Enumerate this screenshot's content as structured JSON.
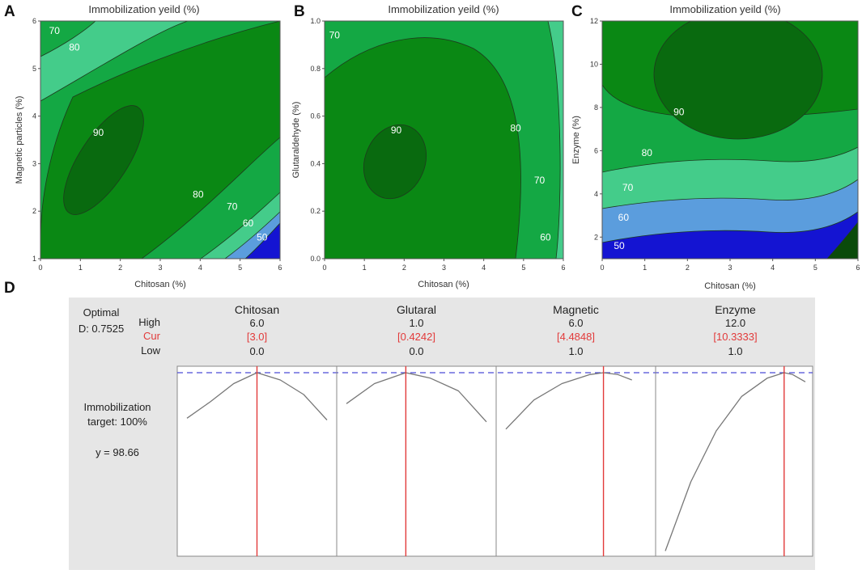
{
  "panel_letters": {
    "a": "A",
    "b": "B",
    "c": "C",
    "d": "D"
  },
  "colors": {
    "band_50": "#1414d2",
    "band_60": "#5b9ddd",
    "band_70": "#44cc8a",
    "band_80": "#14a844",
    "band_90": "#0a8814",
    "band_top": "#096a0f",
    "optimizer_bg": "#e6e6e6",
    "current_line": "#e23a3a",
    "target_line": "#4a4ad6"
  },
  "chart_data": [
    {
      "type": "contour",
      "title": "Immobilization yeild (%)",
      "xlabel": "Chitosan (%)",
      "ylabel": "Magnetic particles (%)",
      "xlim": [
        0,
        6
      ],
      "ylim": [
        1,
        6
      ],
      "xticks": [
        "0",
        "1",
        "2",
        "3",
        "4",
        "5",
        "6"
      ],
      "yticks": [
        "1",
        "2",
        "3",
        "4",
        "5",
        "6"
      ],
      "contour_labels": [
        {
          "text": "70",
          "x": 0.35,
          "y": 5.8
        },
        {
          "text": "80",
          "x": 0.85,
          "y": 5.45
        },
        {
          "text": "90",
          "x": 1.45,
          "y": 3.65
        },
        {
          "text": "80",
          "x": 3.95,
          "y": 2.35
        },
        {
          "text": "70",
          "x": 4.8,
          "y": 2.1
        },
        {
          "text": "60",
          "x": 5.2,
          "y": 1.75
        },
        {
          "text": "50",
          "x": 5.55,
          "y": 1.45
        }
      ]
    },
    {
      "type": "contour",
      "title": "Immobilization yeild (%)",
      "xlabel": "Chitosan (%)",
      "ylabel": "Glutaraldehyde (%)",
      "xlim": [
        0,
        6
      ],
      "ylim": [
        0,
        1
      ],
      "xticks": [
        "0",
        "1",
        "2",
        "3",
        "4",
        "5",
        "6"
      ],
      "yticks": [
        "0.0",
        "0.2",
        "0.4",
        "0.6",
        "0.8",
        "1.0"
      ],
      "contour_labels": [
        {
          "text": "70",
          "x": 0.25,
          "y": 0.94
        },
        {
          "text": "90",
          "x": 1.8,
          "y": 0.54
        },
        {
          "text": "80",
          "x": 4.8,
          "y": 0.55
        },
        {
          "text": "70",
          "x": 5.4,
          "y": 0.33
        },
        {
          "text": "60",
          "x": 5.55,
          "y": 0.09
        }
      ]
    },
    {
      "type": "contour",
      "title": "Immobilization yeild (%)",
      "xlabel": "Chitosan (%)",
      "ylabel": "Enzyme (%)",
      "xlim": [
        0,
        6
      ],
      "ylim": [
        1,
        12
      ],
      "xticks": [
        "0",
        "1",
        "2",
        "3",
        "4",
        "5",
        "6"
      ],
      "yticks": [
        "2",
        "4",
        "6",
        "8",
        "10",
        "12"
      ],
      "contour_labels": [
        {
          "text": "90",
          "x": 1.8,
          "y": 7.8
        },
        {
          "text": "80",
          "x": 1.05,
          "y": 5.9
        },
        {
          "text": "70",
          "x": 0.6,
          "y": 4.3
        },
        {
          "text": "60",
          "x": 0.5,
          "y": 2.9
        },
        {
          "text": "50",
          "x": 0.4,
          "y": 1.6
        }
      ]
    }
  ],
  "optimizer": {
    "optimal_label": "Optimal",
    "d_label": "D: 0.7525",
    "row_labels": {
      "high": "High",
      "cur": "Cur",
      "low": "Low"
    },
    "response_name": "Immobilization",
    "response_target": "target: 100%",
    "response_y": "y = 98.66",
    "factors": [
      {
        "name": "Chitosan",
        "high": "6.0",
        "cur": "[3.0]",
        "low": "0.0",
        "low_v": 0,
        "high_v": 6,
        "cur_v": 3.0,
        "curve": [
          [
            0,
            0.25
          ],
          [
            1,
            0.16
          ],
          [
            2,
            0.06
          ],
          [
            3,
            0
          ],
          [
            4,
            0.04
          ],
          [
            5,
            0.12
          ],
          [
            6,
            0.26
          ]
        ]
      },
      {
        "name": "Glutaral",
        "high": "1.0",
        "cur": "[0.4242]",
        "low": "0.0",
        "low_v": 0,
        "high_v": 1,
        "cur_v": 0.4242,
        "curve": [
          [
            0,
            0.17
          ],
          [
            0.2,
            0.06
          ],
          [
            0.4242,
            0
          ],
          [
            0.6,
            0.03
          ],
          [
            0.8,
            0.1
          ],
          [
            1,
            0.27
          ]
        ]
      },
      {
        "name": "Magnetic",
        "high": "6.0",
        "cur": "[4.4848]",
        "low": "1.0",
        "low_v": 1,
        "high_v": 6,
        "cur_v": 4.4848,
        "curve": [
          [
            1,
            0.31
          ],
          [
            2,
            0.15
          ],
          [
            3,
            0.06
          ],
          [
            4,
            0.01
          ],
          [
            4.4848,
            0
          ],
          [
            5,
            0.01
          ],
          [
            5.5,
            0.04
          ]
        ]
      },
      {
        "name": "Enzyme",
        "high": "12.0",
        "cur": "[10.3333]",
        "low": "1.0",
        "low_v": 1,
        "high_v": 12,
        "cur_v": 10.3333,
        "curve": [
          [
            1,
            0.98
          ],
          [
            3,
            0.6
          ],
          [
            5,
            0.32
          ],
          [
            7,
            0.13
          ],
          [
            9,
            0.03
          ],
          [
            10.3333,
            0
          ],
          [
            11,
            0.01
          ],
          [
            12,
            0.05
          ]
        ]
      }
    ]
  }
}
